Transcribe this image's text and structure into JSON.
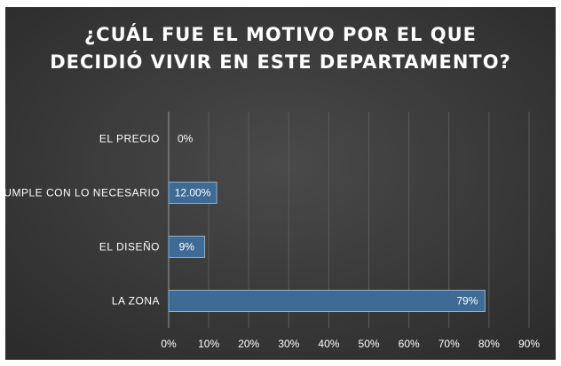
{
  "chart_data": {
    "type": "bar",
    "orientation": "horizontal",
    "title_lines": [
      "¿CUÁL FUE EL MOTIVO POR EL QUE",
      "DECIDIÓ VIVIR EN ESTE DEPARTAMENTO?"
    ],
    "categories": [
      "EL PRECIO",
      "CUMPLE CON LO NECESARIO",
      "EL DISEÑO",
      "LA ZONA"
    ],
    "values": [
      0,
      12,
      9,
      79
    ],
    "data_labels": [
      "0%",
      "12.00%",
      "9%",
      "79%"
    ],
    "xlim": [
      0,
      90
    ],
    "x_ticks": [
      0,
      10,
      20,
      30,
      40,
      50,
      60,
      70,
      80,
      90
    ],
    "x_tick_labels": [
      "0%",
      "10%",
      "20%",
      "30%",
      "40%",
      "50%",
      "60%",
      "70%",
      "80%",
      "90%"
    ],
    "grid": true,
    "legend": "none",
    "colors": {
      "background": "#3a3a3a",
      "bar_fill": "#3e6a96",
      "bar_stroke": "#8fb0d0",
      "gridline": "#5c5c5c",
      "text": "#ffffff"
    }
  }
}
